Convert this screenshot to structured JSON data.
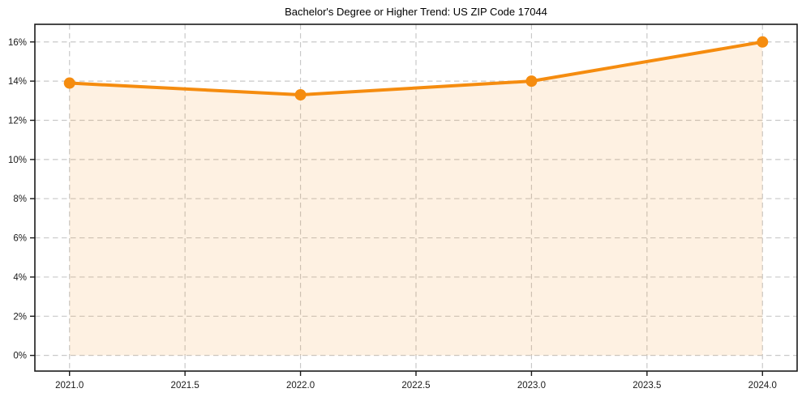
{
  "chart_data": {
    "type": "line",
    "title": "Bachelor's Degree or Higher Trend: US ZIP Code 17044",
    "series": [
      {
        "name": "Bachelor's degree or higher",
        "x": [
          2021,
          2022,
          2023,
          2024
        ],
        "values": [
          13.9,
          13.3,
          14.0,
          16.0
        ],
        "unit": "%",
        "marker": "circle",
        "area_fill_to": 0
      }
    ],
    "xlim": [
      2020.85,
      2024.15
    ],
    "ylim": [
      -0.8,
      16.9
    ],
    "x_ticks": [
      2021.0,
      2021.5,
      2022.0,
      2022.5,
      2023.0,
      2023.5,
      2024.0
    ],
    "x_tick_labels": [
      "2021.0",
      "2021.5",
      "2022.0",
      "2022.5",
      "2023.0",
      "2023.5",
      "2024.0"
    ],
    "y_ticks": [
      0,
      2,
      4,
      6,
      8,
      10,
      12,
      14,
      16
    ],
    "y_tick_labels": [
      "0%",
      "2%",
      "4%",
      "6%",
      "8%",
      "10%",
      "12%",
      "14%",
      "16%"
    ],
    "xlabel": "",
    "ylabel": "",
    "grid": true,
    "grid_style": "dashed",
    "legend": false,
    "colors": {
      "line": "#f58c0f",
      "marker": "#f58c0f",
      "fill": "rgba(245, 140, 15, 0.12)",
      "grid": "#c9c9c9",
      "spine": "#1a1a1a",
      "tick_label": "#1a1a1a",
      "title": "#000000",
      "background": "#ffffff"
    }
  }
}
